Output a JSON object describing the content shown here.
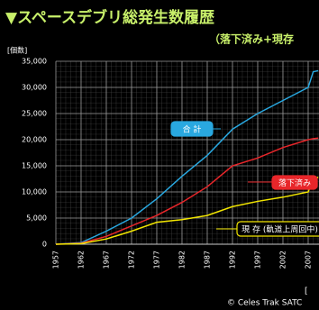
{
  "chart_data": {
    "type": "line",
    "title": "▼スペースデブリ総発生数履歴",
    "subtitle": "（落下済み+現存",
    "y_label": "[個数]",
    "x_label": "[",
    "source": "© Celes Trak SATC",
    "x": [
      1957,
      1962,
      1967,
      1972,
      1977,
      1982,
      1987,
      1992,
      1997,
      2002,
      2007,
      2008,
      2009
    ],
    "series": [
      {
        "name": "合 計",
        "color": "#29a8e0",
        "values": [
          0,
          300,
          2500,
          5000,
          8700,
          13000,
          17000,
          22000,
          25000,
          27500,
          30000,
          33000,
          33200
        ]
      },
      {
        "name": "落下済み",
        "color": "#e8262a",
        "values": [
          0,
          200,
          1500,
          3500,
          5500,
          8000,
          11000,
          15000,
          16500,
          18500,
          20000,
          20200,
          20300
        ]
      },
      {
        "name": "現 存 (軌道上周回中)",
        "color": "#f2e600",
        "values": [
          0,
          100,
          1000,
          2500,
          4200,
          4700,
          5500,
          7200,
          8200,
          9000,
          10000,
          12500,
          12800
        ]
      }
    ],
    "xlim": [
      1957,
      2009.3
    ],
    "ylim": [
      0,
      35000
    ],
    "xticks": [
      1957,
      1962,
      1967,
      1972,
      1977,
      1982,
      1987,
      1992,
      1997,
      2002,
      2007
    ],
    "yticks": [
      0,
      {
        "value": 5000,
        "label": "5,000"
      },
      {
        "value": 10000,
        "label": "10,000"
      },
      {
        "value": 15000,
        "label": "15,000"
      },
      {
        "value": 20000,
        "label": "20,000"
      },
      {
        "value": 25000,
        "label": "25,000"
      },
      {
        "value": 30000,
        "label": "30,000"
      },
      {
        "value": 35000,
        "label": "35,000"
      }
    ],
    "grid": true
  }
}
